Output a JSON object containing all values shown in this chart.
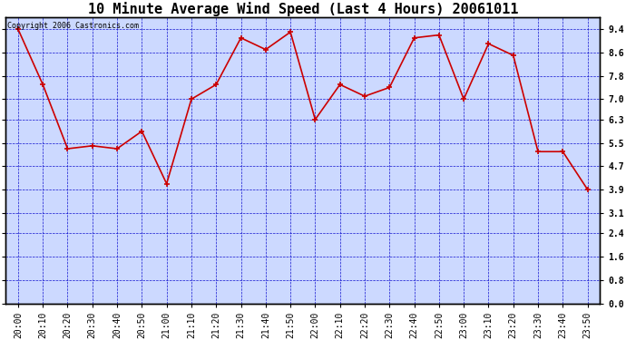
{
  "title": "10 Minute Average Wind Speed (Last 4 Hours) 20061011",
  "copyright": "Copyright 2006 Castronics.com",
  "x_labels": [
    "20:00",
    "20:10",
    "20:20",
    "20:30",
    "20:40",
    "20:50",
    "21:00",
    "21:10",
    "21:20",
    "21:30",
    "21:40",
    "21:50",
    "22:00",
    "22:10",
    "22:20",
    "22:30",
    "22:40",
    "22:50",
    "23:00",
    "23:10",
    "23:20",
    "23:30",
    "23:40",
    "23:50"
  ],
  "y_values": [
    9.4,
    7.5,
    5.3,
    5.4,
    5.3,
    5.9,
    4.1,
    7.0,
    7.5,
    9.1,
    8.7,
    9.3,
    6.3,
    7.5,
    7.1,
    7.4,
    9.1,
    9.2,
    7.0,
    8.9,
    8.5,
    5.2,
    5.2,
    3.9
  ],
  "line_color": "#cc0000",
  "marker_color": "#cc0000",
  "bg_color": "#ffffff",
  "plot_bg_color": "#ccd9ff",
  "border_color": "#000000",
  "grid_color": "#0000cc",
  "title_fontsize": 11,
  "copyright_fontsize": 6,
  "tick_fontsize": 7,
  "ylim": [
    0.0,
    9.8
  ],
  "yticks": [
    0.0,
    0.8,
    1.6,
    2.4,
    3.1,
    3.9,
    4.7,
    5.5,
    6.3,
    7.0,
    7.8,
    8.6,
    9.4
  ]
}
